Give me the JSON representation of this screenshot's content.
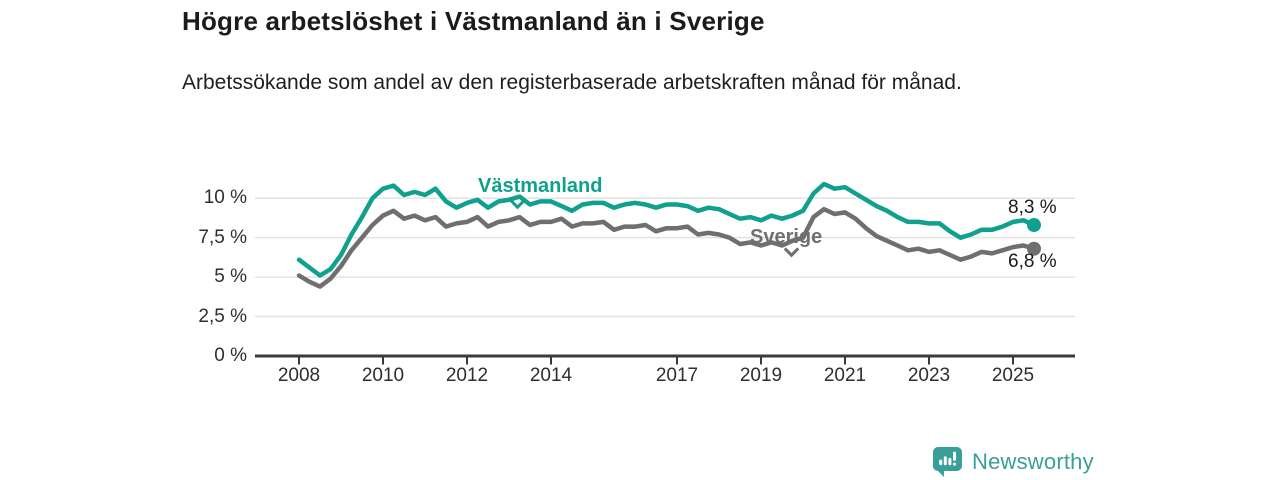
{
  "header": {
    "title": "Högre arbetslöshet i Västmanland än i Sverige",
    "subtitle": "Arbetssökande som andel av den registerbaserade arbetskraften månad för månad."
  },
  "chart_data": {
    "type": "line",
    "title": "Högre arbetslöshet i Västmanland än i Sverige",
    "xlabel": "",
    "ylabel": "Arbetssökande som andel av den registerbaserade arbetskraften",
    "grid": "horizontal",
    "ylim": [
      0,
      11
    ],
    "xlim": [
      2007,
      2026.5
    ],
    "x_unit": "decimal_year",
    "x": [
      2008,
      2008.25,
      2008.5,
      2008.75,
      2009,
      2009.25,
      2009.5,
      2009.75,
      2010,
      2010.25,
      2010.5,
      2010.75,
      2011,
      2011.25,
      2011.5,
      2011.75,
      2012,
      2012.25,
      2012.5,
      2012.75,
      2013,
      2013.25,
      2013.5,
      2013.75,
      2014,
      2014.25,
      2014.5,
      2014.75,
      2015,
      2015.25,
      2015.5,
      2015.75,
      2016,
      2016.25,
      2016.5,
      2016.75,
      2017,
      2017.25,
      2017.5,
      2017.75,
      2018,
      2018.25,
      2018.5,
      2018.75,
      2019,
      2019.25,
      2019.5,
      2019.75,
      2020,
      2020.25,
      2020.5,
      2020.75,
      2021,
      2021.25,
      2021.5,
      2021.75,
      2022,
      2022.25,
      2022.5,
      2022.75,
      2023,
      2023.25,
      2023.5,
      2023.75,
      2024,
      2024.25,
      2024.5,
      2024.75,
      2025,
      2025.25,
      2025.5
    ],
    "series": [
      {
        "name": "Västmanland",
        "color": "#0fa18e",
        "end_label": "8,3 %",
        "end_value": 8.3,
        "values": [
          6.1,
          5.6,
          5.1,
          5.5,
          6.4,
          7.7,
          8.8,
          10.0,
          10.6,
          10.8,
          10.2,
          10.4,
          10.2,
          10.6,
          9.8,
          9.4,
          9.7,
          9.9,
          9.4,
          9.8,
          9.9,
          10.1,
          9.6,
          9.8,
          9.8,
          9.5,
          9.2,
          9.6,
          9.7,
          9.7,
          9.4,
          9.6,
          9.7,
          9.6,
          9.4,
          9.6,
          9.6,
          9.5,
          9.2,
          9.4,
          9.3,
          9.0,
          8.7,
          8.8,
          8.6,
          8.9,
          8.7,
          8.9,
          9.2,
          10.3,
          10.9,
          10.6,
          10.7,
          10.3,
          9.9,
          9.5,
          9.2,
          8.8,
          8.5,
          8.5,
          8.4,
          8.4,
          7.9,
          7.5,
          7.7,
          8.0,
          8.0,
          8.2,
          8.5,
          8.6,
          8.3
        ]
      },
      {
        "name": "Sverige",
        "color": "#6f6f6f",
        "end_label": "6,8 %",
        "end_value": 6.8,
        "values": [
          5.1,
          4.7,
          4.4,
          4.9,
          5.7,
          6.7,
          7.5,
          8.3,
          8.9,
          9.2,
          8.7,
          8.9,
          8.6,
          8.8,
          8.2,
          8.4,
          8.5,
          8.8,
          8.2,
          8.5,
          8.6,
          8.8,
          8.3,
          8.5,
          8.5,
          8.7,
          8.2,
          8.4,
          8.4,
          8.5,
          8.0,
          8.2,
          8.2,
          8.3,
          7.9,
          8.1,
          8.1,
          8.2,
          7.7,
          7.8,
          7.7,
          7.5,
          7.1,
          7.2,
          7.0,
          7.2,
          7.0,
          7.3,
          7.5,
          8.8,
          9.3,
          9.0,
          9.1,
          8.7,
          8.1,
          7.6,
          7.3,
          7.0,
          6.7,
          6.8,
          6.6,
          6.7,
          6.4,
          6.1,
          6.3,
          6.6,
          6.5,
          6.7,
          6.9,
          7.0,
          6.8
        ]
      }
    ],
    "y_ticks": [
      {
        "value": 0,
        "label": "0 %"
      },
      {
        "value": 2.5,
        "label": "2,5 %"
      },
      {
        "value": 5,
        "label": "5 %"
      },
      {
        "value": 7.5,
        "label": "7,5 %"
      },
      {
        "value": 10,
        "label": "10 %"
      }
    ],
    "x_ticks": [
      {
        "value": 2008,
        "label": "2008"
      },
      {
        "value": 2010,
        "label": "2010"
      },
      {
        "value": 2012,
        "label": "2012"
      },
      {
        "value": 2014,
        "label": "2014"
      },
      {
        "value": 2017,
        "label": "2017"
      },
      {
        "value": 2019,
        "label": "2019"
      },
      {
        "value": 2021,
        "label": "2021"
      },
      {
        "value": 2023,
        "label": "2023"
      },
      {
        "value": 2025,
        "label": "2025"
      }
    ],
    "colors": {
      "grid": "#e2e2e2",
      "axis": "#3a3a3a",
      "tick_text": "#2e2e2e"
    }
  },
  "footer": {
    "brand": "Newsworthy",
    "logo_icon": "bar-chart-speech-bubble",
    "brand_color": "#3a9e99"
  }
}
